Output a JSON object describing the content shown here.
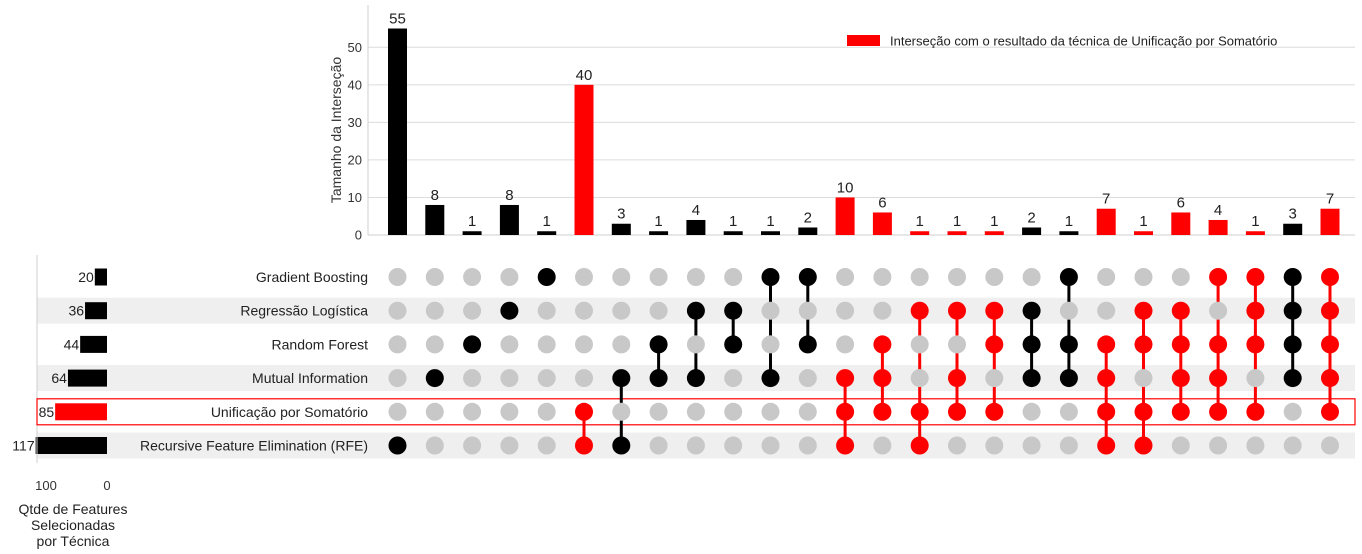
{
  "chart_data": {
    "type": "bar",
    "title": "",
    "ylabel": "Tamanho da Interseção",
    "ylim": [
      0,
      56
    ],
    "yticks": [
      0,
      10,
      20,
      30,
      40,
      50
    ],
    "legend": {
      "label": "Interseção com o resultado da técnica de Unificação por Somatório",
      "placement": "top-right"
    },
    "colors": {
      "highlight": "#ff0000",
      "normal": "#000000",
      "inactive": "#c8c8c8",
      "stripe": "#efefef"
    },
    "sets": [
      {
        "name": "Gradient Boosting",
        "size": 20,
        "highlight": false
      },
      {
        "name": "Regressão Logística",
        "size": 36,
        "highlight": false
      },
      {
        "name": "Random Forest",
        "size": 44,
        "highlight": false
      },
      {
        "name": "Mutual Information",
        "size": 64,
        "highlight": false
      },
      {
        "name": "Unificação por Somatório",
        "size": 85,
        "highlight": true
      },
      {
        "name": "Recursive Feature Elimination (RFE)",
        "size": 117,
        "highlight": false
      }
    ],
    "set_size_axis": {
      "label": "Qtde de Features Selecionadas por Técnica",
      "ticks": [
        100,
        0
      ],
      "xlim": [
        0,
        117
      ]
    },
    "intersections": [
      {
        "size": 55,
        "members": [
          5
        ],
        "highlight": false
      },
      {
        "size": 8,
        "members": [
          3
        ],
        "highlight": false
      },
      {
        "size": 1,
        "members": [
          2
        ],
        "highlight": false
      },
      {
        "size": 8,
        "members": [
          1
        ],
        "highlight": false
      },
      {
        "size": 1,
        "members": [
          0
        ],
        "highlight": false
      },
      {
        "size": 40,
        "members": [
          4,
          5
        ],
        "highlight": true
      },
      {
        "size": 3,
        "members": [
          3,
          5
        ],
        "highlight": false
      },
      {
        "size": 1,
        "members": [
          2,
          3
        ],
        "highlight": false
      },
      {
        "size": 4,
        "members": [
          1,
          3
        ],
        "highlight": false
      },
      {
        "size": 1,
        "members": [
          1,
          2
        ],
        "highlight": false
      },
      {
        "size": 1,
        "members": [
          0,
          3
        ],
        "highlight": false
      },
      {
        "size": 2,
        "members": [
          0,
          2
        ],
        "highlight": false
      },
      {
        "size": 10,
        "members": [
          3,
          4,
          5
        ],
        "highlight": true
      },
      {
        "size": 6,
        "members": [
          2,
          3,
          4
        ],
        "highlight": true
      },
      {
        "size": 1,
        "members": [
          1,
          4,
          5
        ],
        "highlight": true
      },
      {
        "size": 1,
        "members": [
          1,
          3,
          4
        ],
        "highlight": true
      },
      {
        "size": 1,
        "members": [
          1,
          2,
          4
        ],
        "highlight": true
      },
      {
        "size": 2,
        "members": [
          1,
          2,
          3
        ],
        "highlight": false
      },
      {
        "size": 1,
        "members": [
          0,
          2,
          3
        ],
        "highlight": false
      },
      {
        "size": 7,
        "members": [
          2,
          3,
          4,
          5
        ],
        "highlight": true
      },
      {
        "size": 1,
        "members": [
          1,
          2,
          4,
          5
        ],
        "highlight": true
      },
      {
        "size": 6,
        "members": [
          1,
          2,
          3,
          4
        ],
        "highlight": true
      },
      {
        "size": 4,
        "members": [
          0,
          2,
          3,
          4
        ],
        "highlight": true
      },
      {
        "size": 1,
        "members": [
          0,
          1,
          2,
          4
        ],
        "highlight": true
      },
      {
        "size": 3,
        "members": [
          0,
          1,
          2,
          3
        ],
        "highlight": false
      },
      {
        "size": 7,
        "members": [
          0,
          1,
          2,
          3,
          4
        ],
        "highlight": true
      }
    ]
  }
}
